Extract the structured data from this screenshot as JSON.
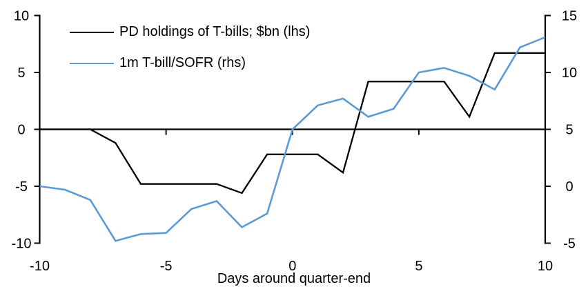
{
  "figure": {
    "background": "#ffffff",
    "text_color": "#000000"
  },
  "chart_data": {
    "type": "line",
    "title": "",
    "xlabel": "Days around quarter-end",
    "x": [
      -10,
      -9,
      -8,
      -7,
      -6,
      -5,
      -4,
      -3,
      -2,
      -1,
      0,
      1,
      2,
      3,
      4,
      5,
      6,
      7,
      8,
      9,
      10
    ],
    "x_ticks": [
      -10,
      -5,
      0,
      5,
      10
    ],
    "grid": false,
    "legend_position": "top-left",
    "axes": {
      "left": {
        "min": -10,
        "max": 10,
        "ticks": [
          10,
          5,
          0,
          -5,
          -10
        ]
      },
      "right": {
        "min": -5,
        "max": 15,
        "ticks": [
          15,
          10,
          5,
          0,
          -5
        ]
      }
    },
    "series": [
      {
        "name": "PD holdings of T-bills; $bn (lhs)",
        "axis": "lhs",
        "color": "#000000",
        "values": [
          0,
          0,
          0,
          -1.2,
          -4.8,
          -4.8,
          -4.8,
          -4.8,
          -5.6,
          -2.2,
          -2.2,
          -2.2,
          -3.8,
          4.2,
          4.2,
          4.2,
          4.2,
          1.1,
          6.7,
          6.7,
          6.7
        ]
      },
      {
        "name": "1m T-bill/SOFR (rhs)",
        "axis": "rhs",
        "color": "#5B9BD5",
        "values": [
          0.0,
          -0.3,
          -1.2,
          -4.8,
          -4.2,
          -4.1,
          -2.0,
          -1.3,
          -3.6,
          -2.4,
          5.0,
          7.1,
          7.7,
          6.1,
          6.8,
          10.0,
          10.4,
          9.7,
          8.5,
          12.2,
          13.1
        ]
      }
    ]
  }
}
